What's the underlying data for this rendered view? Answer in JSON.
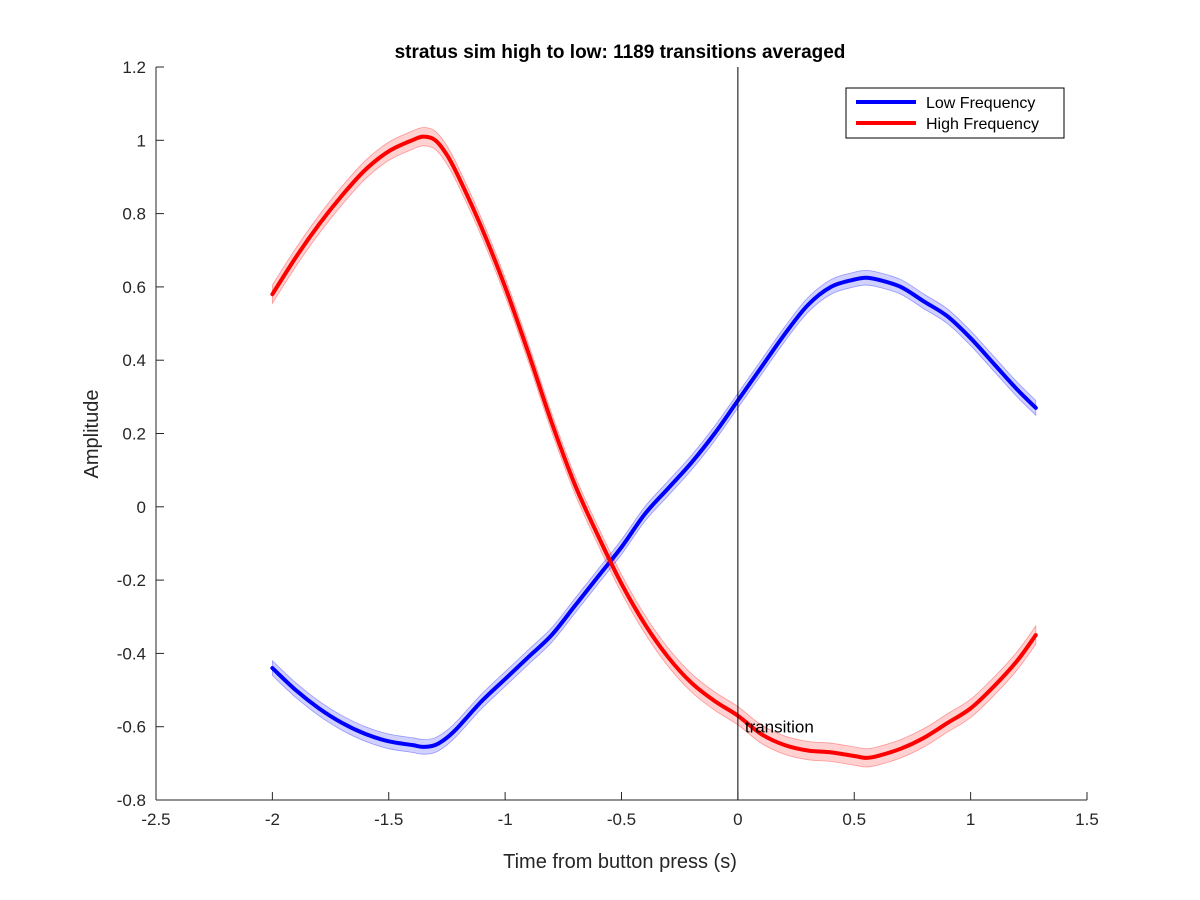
{
  "chart_data": {
    "type": "line",
    "title": "stratus sim high to low: 1189 transitions averaged",
    "xlabel": "Time from button press (s)",
    "ylabel": "Amplitude",
    "xlim": [
      -2.5,
      1.5
    ],
    "ylim": [
      -0.8,
      1.2
    ],
    "xticks": [
      -2.5,
      -2,
      -1.5,
      -1,
      -0.5,
      0,
      0.5,
      1,
      1.5
    ],
    "yticks": [
      -0.8,
      -0.6,
      -0.4,
      -0.2,
      0,
      0.2,
      0.4,
      0.6,
      0.8,
      1,
      1.2
    ],
    "xtick_labels": [
      "-2.5",
      "-2",
      "-1.5",
      "-1",
      "-0.5",
      "0",
      "0.5",
      "1",
      "1.5"
    ],
    "ytick_labels": [
      "-0.8",
      "-0.6",
      "-0.4",
      "-0.2",
      "0",
      "0.2",
      "0.4",
      "0.6",
      "0.8",
      "1",
      "1.2"
    ],
    "grid": false,
    "legend_position": "top-right",
    "series": [
      {
        "name": "Low Frequency",
        "color": "#0000ff",
        "band": 0.02,
        "x": [
          -2.0,
          -1.9,
          -1.8,
          -1.7,
          -1.6,
          -1.5,
          -1.4,
          -1.35,
          -1.3,
          -1.25,
          -1.2,
          -1.1,
          -1.0,
          -0.9,
          -0.8,
          -0.7,
          -0.6,
          -0.5,
          -0.4,
          -0.3,
          -0.2,
          -0.1,
          0.0,
          0.1,
          0.2,
          0.3,
          0.4,
          0.5,
          0.55,
          0.6,
          0.7,
          0.8,
          0.9,
          1.0,
          1.1,
          1.2,
          1.28
        ],
        "y": [
          -0.44,
          -0.5,
          -0.55,
          -0.59,
          -0.62,
          -0.64,
          -0.65,
          -0.655,
          -0.65,
          -0.63,
          -0.6,
          -0.53,
          -0.47,
          -0.41,
          -0.35,
          -0.27,
          -0.19,
          -0.11,
          -0.02,
          0.05,
          0.12,
          0.2,
          0.29,
          0.38,
          0.47,
          0.55,
          0.6,
          0.62,
          0.625,
          0.62,
          0.6,
          0.56,
          0.52,
          0.46,
          0.39,
          0.32,
          0.27
        ]
      },
      {
        "name": "High Frequency",
        "color": "#ff0000",
        "band": 0.025,
        "x": [
          -2.0,
          -1.9,
          -1.8,
          -1.7,
          -1.6,
          -1.5,
          -1.4,
          -1.35,
          -1.3,
          -1.25,
          -1.2,
          -1.1,
          -1.0,
          -0.9,
          -0.8,
          -0.7,
          -0.6,
          -0.5,
          -0.4,
          -0.3,
          -0.2,
          -0.1,
          0.0,
          0.1,
          0.2,
          0.3,
          0.4,
          0.5,
          0.55,
          0.6,
          0.7,
          0.8,
          0.9,
          1.0,
          1.1,
          1.2,
          1.28
        ],
        "y": [
          0.58,
          0.68,
          0.77,
          0.85,
          0.92,
          0.97,
          1.0,
          1.01,
          1.0,
          0.96,
          0.9,
          0.76,
          0.6,
          0.42,
          0.23,
          0.06,
          -0.08,
          -0.21,
          -0.32,
          -0.41,
          -0.48,
          -0.53,
          -0.57,
          -0.62,
          -0.65,
          -0.665,
          -0.67,
          -0.68,
          -0.685,
          -0.68,
          -0.66,
          -0.63,
          -0.59,
          -0.55,
          -0.49,
          -0.42,
          -0.35
        ]
      }
    ],
    "annotations": [
      {
        "text": "transition",
        "x": 0.03,
        "y": -0.6
      }
    ],
    "vline_x": 0
  }
}
